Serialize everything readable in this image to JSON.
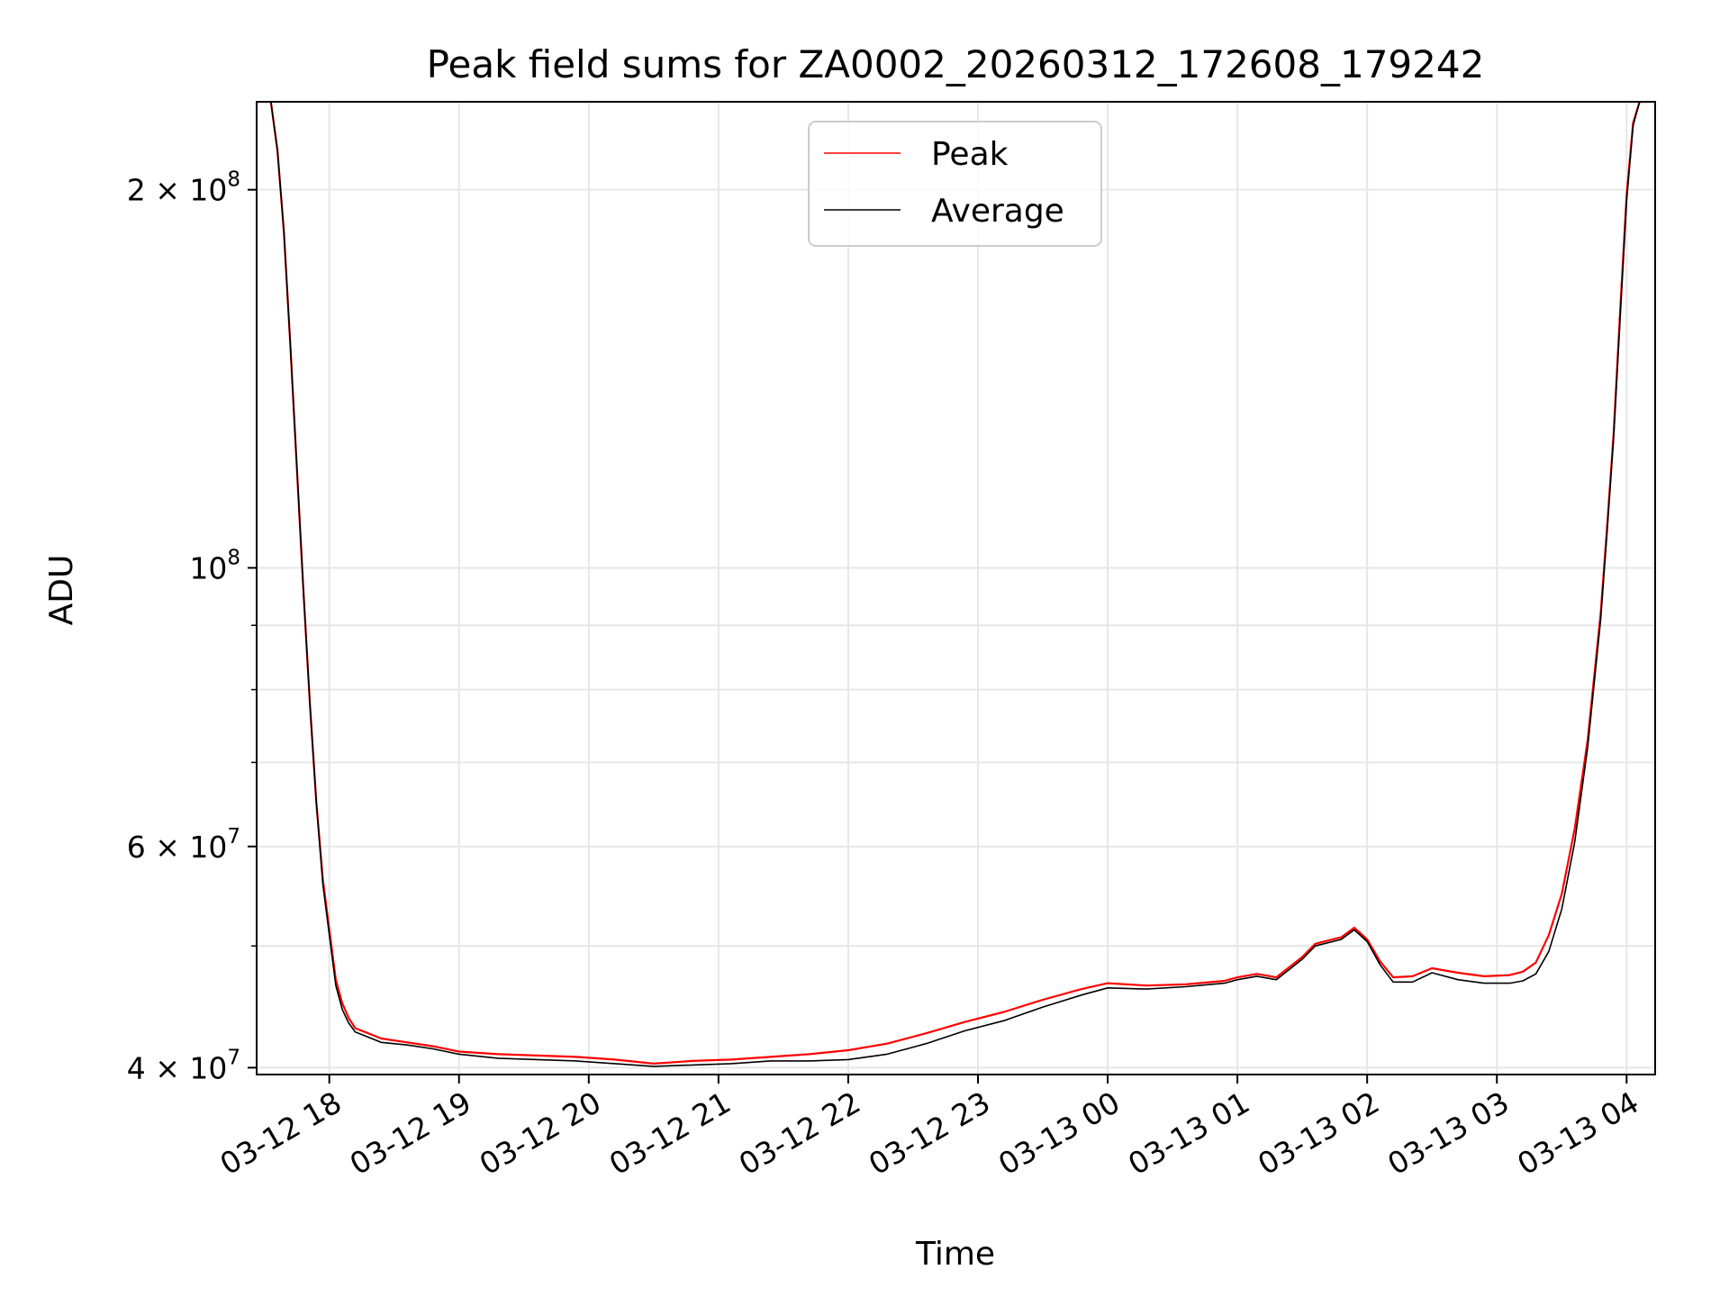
{
  "chart_data": {
    "type": "line",
    "title": "Peak field sums for ZA0002_20260312_172608_179242",
    "xlabel": "Time",
    "ylabel": "ADU",
    "yscale": "log",
    "grid": true,
    "legend_position": "top-center",
    "x_unit": "hours since 2026-03-12 00:00",
    "xlim": [
      17.44,
      28.22
    ],
    "ylim": [
      39500000,
      235000000
    ],
    "x_ticks": [
      {
        "value": 18,
        "label": "03-12 18"
      },
      {
        "value": 19,
        "label": "03-12 19"
      },
      {
        "value": 20,
        "label": "03-12 20"
      },
      {
        "value": 21,
        "label": "03-12 21"
      },
      {
        "value": 22,
        "label": "03-12 22"
      },
      {
        "value": 23,
        "label": "03-12 23"
      },
      {
        "value": 24,
        "label": "03-13 00"
      },
      {
        "value": 25,
        "label": "03-13 01"
      },
      {
        "value": 26,
        "label": "03-13 02"
      },
      {
        "value": 27,
        "label": "03-13 03"
      },
      {
        "value": 28,
        "label": "03-13 04"
      }
    ],
    "y_ticks": [
      {
        "value": 40000000,
        "base": "4 × 10",
        "exp": "7"
      },
      {
        "value": 60000000,
        "base": "6 × 10",
        "exp": "7"
      },
      {
        "value": 100000000,
        "base": "10",
        "exp": "8"
      },
      {
        "value": 200000000,
        "base": "2 × 10",
        "exp": "8"
      }
    ],
    "y_minor_ticks": [
      50000000,
      70000000,
      80000000,
      90000000
    ],
    "series": [
      {
        "name": "Peak",
        "color": "#ff0000",
        "x": [
          17.44,
          17.55,
          17.6,
          17.65,
          17.7,
          17.75,
          17.8,
          17.85,
          17.9,
          17.95,
          18.0,
          18.05,
          18.1,
          18.15,
          18.2,
          18.3,
          18.4,
          18.6,
          18.8,
          19.0,
          19.3,
          19.6,
          19.9,
          20.2,
          20.5,
          20.8,
          21.1,
          21.4,
          21.7,
          22.0,
          22.3,
          22.6,
          22.9,
          23.2,
          23.5,
          23.8,
          24.0,
          24.3,
          24.6,
          24.9,
          25.0,
          25.15,
          25.3,
          25.5,
          25.6,
          25.8,
          25.9,
          26.0,
          26.1,
          26.2,
          26.35,
          26.5,
          26.7,
          26.9,
          27.1,
          27.2,
          27.3,
          27.4,
          27.5,
          27.6,
          27.7,
          27.8,
          27.85,
          27.9,
          27.95,
          28.0,
          28.05,
          28.1,
          28.22
        ],
        "y": [
          235000000,
          235000000,
          215000000,
          185000000,
          150000000,
          120000000,
          96000000,
          78000000,
          65000000,
          56500000,
          51500000,
          47000000,
          45000000,
          43800000,
          43000000,
          42600000,
          42200000,
          41900000,
          41600000,
          41200000,
          41000000,
          40900000,
          40800000,
          40600000,
          40300000,
          40500000,
          40600000,
          40800000,
          41000000,
          41300000,
          41800000,
          42600000,
          43500000,
          44300000,
          45300000,
          46200000,
          46700000,
          46500000,
          46600000,
          46900000,
          47200000,
          47500000,
          47200000,
          49000000,
          50200000,
          50800000,
          51700000,
          50600000,
          48600000,
          47200000,
          47300000,
          48000000,
          47600000,
          47300000,
          47400000,
          47700000,
          48500000,
          51000000,
          55000000,
          62000000,
          73000000,
          92000000,
          108000000,
          128000000,
          160000000,
          198000000,
          226000000,
          235000000,
          235000000
        ]
      },
      {
        "name": "Average",
        "color": "#000000",
        "x": [
          17.44,
          17.55,
          17.6,
          17.65,
          17.7,
          17.75,
          17.8,
          17.85,
          17.9,
          17.95,
          18.0,
          18.05,
          18.1,
          18.15,
          18.2,
          18.3,
          18.4,
          18.6,
          18.8,
          19.0,
          19.3,
          19.6,
          19.9,
          20.2,
          20.5,
          20.8,
          21.1,
          21.4,
          21.7,
          22.0,
          22.3,
          22.6,
          22.9,
          23.2,
          23.5,
          23.8,
          24.0,
          24.3,
          24.6,
          24.9,
          25.0,
          25.15,
          25.3,
          25.5,
          25.6,
          25.8,
          25.9,
          26.0,
          26.1,
          26.2,
          26.35,
          26.5,
          26.7,
          26.9,
          27.1,
          27.2,
          27.3,
          27.4,
          27.5,
          27.6,
          27.7,
          27.8,
          27.85,
          27.9,
          27.95,
          28.0,
          28.05,
          28.1,
          28.22
        ],
        "y": [
          235000000,
          235000000,
          215000000,
          185000000,
          150000000,
          120000000,
          96000000,
          78000000,
          65000000,
          56000000,
          51000000,
          46500000,
          44500000,
          43400000,
          42700000,
          42300000,
          41900000,
          41700000,
          41400000,
          41000000,
          40700000,
          40600000,
          40500000,
          40300000,
          40100000,
          40200000,
          40300000,
          40500000,
          40500000,
          40600000,
          41000000,
          41800000,
          42800000,
          43600000,
          44700000,
          45700000,
          46300000,
          46200000,
          46400000,
          46700000,
          47000000,
          47300000,
          47000000,
          48800000,
          50000000,
          50600000,
          51500000,
          50400000,
          48300000,
          46800000,
          46800000,
          47600000,
          47000000,
          46700000,
          46700000,
          46900000,
          47500000,
          49500000,
          53500000,
          60500000,
          72000000,
          91000000,
          107000000,
          127000000,
          158000000,
          196000000,
          225000000,
          235000000,
          235000000
        ]
      }
    ]
  }
}
